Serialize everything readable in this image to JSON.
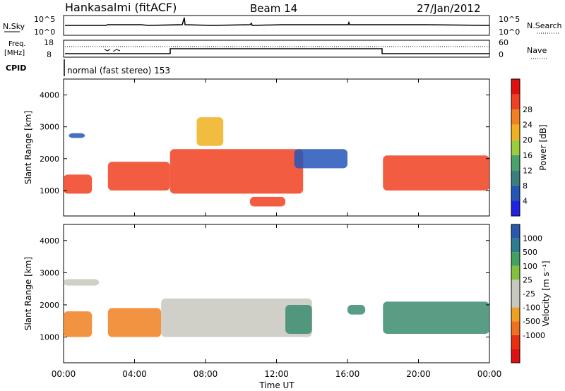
{
  "header": {
    "station": "Hankasalmi (fitACF)",
    "beam": "Beam 14",
    "date": "27/Jan/2012"
  },
  "noise_panel": {
    "left_label": "N.Sky",
    "right_label": "N.Search",
    "left_ticks": [
      "10^5",
      "10^0"
    ],
    "right_ticks": [
      "10^5",
      "10^0"
    ]
  },
  "freq_panel": {
    "left_label_line1": "Freq.",
    "left_label_line2": "[MHz]",
    "left_ticks": [
      "18",
      "8"
    ],
    "right_label": "Nave",
    "right_ticks": [
      "60",
      "0"
    ]
  },
  "cpid": {
    "label": "CPID",
    "text": "normal (fast stereo) 153"
  },
  "colors": {
    "power_scale": [
      "#1f22e0",
      "#2456b8",
      "#3c7e7c",
      "#4aa46a",
      "#9ccc3c",
      "#f0b020",
      "#f08020",
      "#f04020",
      "#e01010"
    ],
    "velocity_scale": [
      "#2a58b0",
      "#2e7c90",
      "#44a060",
      "#84c040",
      "#c8c8c0",
      "#c8c8c0",
      "#f0a020",
      "#f07020",
      "#e83010",
      "#e01010"
    ]
  },
  "chart_data": [
    {
      "type": "heatmap",
      "title": "Power",
      "xlabel": "Time UT",
      "ylabel": "Slant Range [km]",
      "x_ticks": [
        "00:00",
        "04:00",
        "08:00",
        "12:00",
        "16:00",
        "20:00",
        "00:00"
      ],
      "y_ticks": [
        "1000",
        "2000",
        "3000",
        "4000"
      ],
      "ylim": [
        200,
        4500
      ],
      "colorbar": {
        "label": "Power [dB]",
        "ticks": [
          "4",
          "8",
          "12",
          "16",
          "20",
          "24",
          "28"
        ]
      },
      "regions": [
        {
          "t": [
            0.0,
            1.6
          ],
          "r": [
            900,
            1500
          ],
          "level": "high"
        },
        {
          "t": [
            0.3,
            1.2
          ],
          "r": [
            2650,
            2800
          ],
          "level": "low"
        },
        {
          "t": [
            2.5,
            6.0
          ],
          "r": [
            1000,
            1900
          ],
          "level": "high"
        },
        {
          "t": [
            6.0,
            13.5
          ],
          "r": [
            900,
            2300
          ],
          "level": "high"
        },
        {
          "t": [
            10.5,
            12.5
          ],
          "r": [
            500,
            800
          ],
          "level": "high"
        },
        {
          "t": [
            7.5,
            9.0
          ],
          "r": [
            2400,
            3300
          ],
          "level": "mid"
        },
        {
          "t": [
            13.0,
            16.0
          ],
          "r": [
            1700,
            2300
          ],
          "level": "low"
        },
        {
          "t": [
            18.0,
            24.0
          ],
          "r": [
            1000,
            2100
          ],
          "level": "high"
        }
      ]
    },
    {
      "type": "heatmap",
      "title": "Velocity",
      "xlabel": "Time UT",
      "ylabel": "Slant Range [km]",
      "x_ticks": [
        "00:00",
        "04:00",
        "08:00",
        "12:00",
        "16:00",
        "20:00",
        "00:00"
      ],
      "y_ticks": [
        "1000",
        "2000",
        "3000",
        "4000"
      ],
      "ylim": [
        200,
        4500
      ],
      "colorbar": {
        "label": "Velocity [m s⁻¹]",
        "ticks": [
          "1000",
          "500",
          "100",
          "25",
          "-25",
          "-100",
          "-500",
          "-1000"
        ]
      },
      "regions": [
        {
          "t": [
            0.0,
            1.6
          ],
          "r": [
            1000,
            1800
          ],
          "level": "orange"
        },
        {
          "t": [
            2.5,
            5.5
          ],
          "r": [
            1000,
            1900
          ],
          "level": "orange"
        },
        {
          "t": [
            5.5,
            14.0
          ],
          "r": [
            1000,
            2200
          ],
          "level": "grey"
        },
        {
          "t": [
            12.5,
            14.0
          ],
          "r": [
            1100,
            2000
          ],
          "level": "green"
        },
        {
          "t": [
            16.0,
            17.0
          ],
          "r": [
            1700,
            2000
          ],
          "level": "green"
        },
        {
          "t": [
            18.0,
            24.0
          ],
          "r": [
            1100,
            2100
          ],
          "level": "green"
        },
        {
          "t": [
            0.0,
            2.0
          ],
          "r": [
            2600,
            2800
          ],
          "level": "grey"
        }
      ]
    }
  ]
}
